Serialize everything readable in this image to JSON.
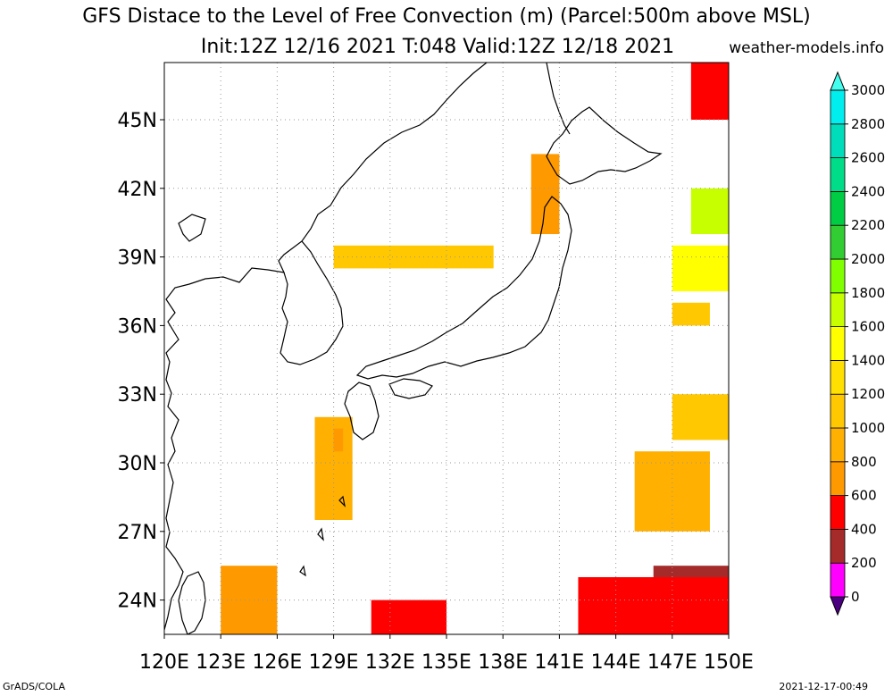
{
  "title": {
    "line1": "GFS Distace to the Level of Free Convection (m) (Parcel:500m above MSL)",
    "line2": "Init:12Z 12/16 2021 T:048 Valid:12Z 12/18 2021"
  },
  "site": "weather-models.info",
  "footer": {
    "left": "GrADS/COLA",
    "right": "2021-12-17-00:49"
  },
  "map": {
    "lon_range": [
      120,
      150
    ],
    "lat_range": [
      22.5,
      47.5
    ],
    "lon_ticks": [
      "120E",
      "123E",
      "126E",
      "129E",
      "132E",
      "135E",
      "138E",
      "141E",
      "144E",
      "147E",
      "150E"
    ],
    "lat_ticks": [
      "24N",
      "27N",
      "30N",
      "33N",
      "36N",
      "39N",
      "42N",
      "45N"
    ],
    "grid": "dotted"
  },
  "colorbar": {
    "levels": [
      "0",
      "200",
      "400",
      "600",
      "800",
      "1000",
      "1200",
      "1400",
      "1600",
      "1800",
      "2000",
      "2200",
      "2400",
      "2600",
      "2800",
      "3000"
    ],
    "colors": [
      "#4b0082",
      "#ff00ff",
      "#a52a2a",
      "#ff0000",
      "#ff9900",
      "#ffb000",
      "#ffc800",
      "#ffe000",
      "#ffff00",
      "#c8ff00",
      "#80ff00",
      "#32cd32",
      "#00cc44",
      "#00dd88",
      "#00ddbb",
      "#00eeee",
      "#44ffee"
    ]
  },
  "chart_data": {
    "type": "heatmap",
    "variable": "Distance to the Level of Free Convection (m)",
    "colored_regions": [
      {
        "lon": [
          123.0,
          126.0
        ],
        "lat": [
          22.5,
          25.5
        ],
        "value": 600
      },
      {
        "lon": [
          128.0,
          130.0
        ],
        "lat": [
          27.5,
          32.0
        ],
        "value": 800
      },
      {
        "lon": [
          129.0,
          129.5
        ],
        "lat": [
          30.5,
          31.5
        ],
        "value": 600
      },
      {
        "lon": [
          139.5,
          141.0
        ],
        "lat": [
          40.0,
          43.5
        ],
        "value": 700
      },
      {
        "lon": [
          145.0,
          149.0
        ],
        "lat": [
          27.0,
          30.5
        ],
        "value": 900
      },
      {
        "lon": [
          147.0,
          150.0
        ],
        "lat": [
          31.0,
          33.0
        ],
        "value": 1000
      },
      {
        "lon": [
          147.0,
          149.0
        ],
        "lat": [
          36.0,
          37.0
        ],
        "value": 1100
      },
      {
        "lon": [
          148.0,
          150.0
        ],
        "lat": [
          40.0,
          42.0
        ],
        "value": 1700
      },
      {
        "lon": [
          147.0,
          150.0
        ],
        "lat": [
          37.5,
          39.5
        ],
        "value": 1500
      },
      {
        "lon": [
          146.0,
          150.0
        ],
        "lat": [
          24.0,
          25.5
        ],
        "value": 200
      },
      {
        "lon": [
          142.0,
          150.0
        ],
        "lat": [
          22.5,
          25.0
        ],
        "value": 400
      },
      {
        "lon": [
          131.0,
          135.0
        ],
        "lat": [
          22.5,
          24.0
        ],
        "value": 400
      },
      {
        "lon": [
          148.0,
          150.0
        ],
        "lat": [
          45.0,
          47.5
        ],
        "value": 500
      },
      {
        "lon": [
          129.0,
          137.5
        ],
        "lat": [
          38.5,
          39.5
        ],
        "value": 1000
      }
    ]
  }
}
